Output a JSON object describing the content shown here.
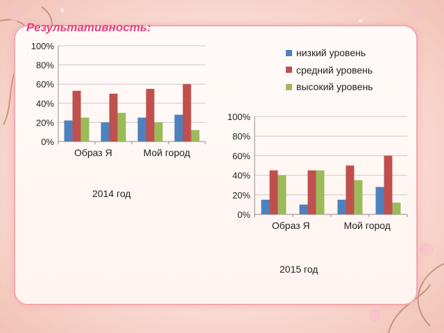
{
  "title": "Результативность:",
  "colors": {
    "series": [
      "#4f81bd",
      "#c0504d",
      "#9bbb59"
    ]
  },
  "legend": {
    "placement": "top-right",
    "items": [
      "низкий уровень",
      "средний уровень",
      "высокий уровень"
    ]
  },
  "captions": {
    "year_2014": "2014 год",
    "year_2015": "2015 год"
  },
  "chart_data": [
    {
      "type": "bar",
      "title": "",
      "caption": "2014 год",
      "categories": [
        "Образ Я",
        "",
        "Мой город",
        ""
      ],
      "series": [
        {
          "name": "низкий уровень",
          "values": [
            0.22,
            0.2,
            0.25,
            0.28
          ]
        },
        {
          "name": "средний уровень",
          "values": [
            0.53,
            0.5,
            0.55,
            0.6
          ]
        },
        {
          "name": "высокий уровень",
          "values": [
            0.25,
            0.3,
            0.2,
            0.12
          ]
        }
      ],
      "ylim": [
        0,
        1
      ],
      "yticks": [
        "0%",
        "20%",
        "40%",
        "60%",
        "80%",
        "100%"
      ],
      "grid": true
    },
    {
      "type": "bar",
      "title": "",
      "caption": "2015 год",
      "categories": [
        "Образ Я",
        "",
        "Мой город",
        ""
      ],
      "series": [
        {
          "name": "низкий уровень",
          "values": [
            0.15,
            0.1,
            0.15,
            0.28
          ]
        },
        {
          "name": "средний уровень",
          "values": [
            0.45,
            0.45,
            0.5,
            0.6
          ]
        },
        {
          "name": "высокий уровень",
          "values": [
            0.4,
            0.45,
            0.35,
            0.12
          ]
        }
      ],
      "ylim": [
        0,
        1
      ],
      "yticks": [
        "0%",
        "20%",
        "40%",
        "60%",
        "80%",
        "100%"
      ],
      "grid": true
    }
  ]
}
